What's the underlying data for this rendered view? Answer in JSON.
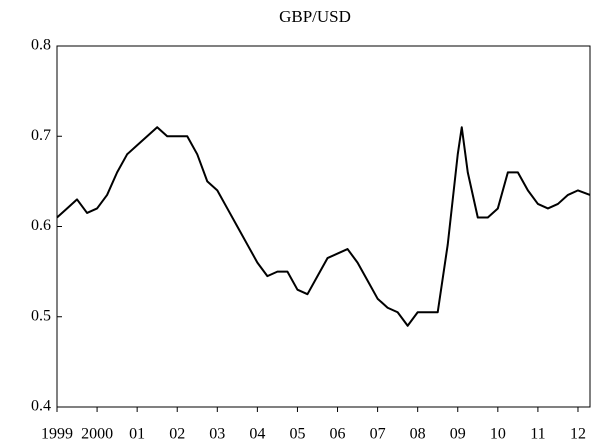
{
  "chart_data": {
    "type": "line",
    "title": "GBP/USD",
    "series": [
      {
        "name": "GBP/USD",
        "color": "#000000",
        "x": [
          1999.0,
          1999.25,
          1999.5,
          1999.75,
          2000.0,
          2000.25,
          2000.5,
          2000.75,
          2001.0,
          2001.25,
          2001.5,
          2001.75,
          2002.0,
          2002.25,
          2002.5,
          2002.75,
          2003.0,
          2003.25,
          2003.5,
          2003.75,
          2004.0,
          2004.25,
          2004.5,
          2004.75,
          2005.0,
          2005.25,
          2005.5,
          2005.75,
          2006.0,
          2006.25,
          2006.5,
          2006.75,
          2007.0,
          2007.25,
          2007.5,
          2007.75,
          2008.0,
          2008.25,
          2008.5,
          2008.75,
          2009.0,
          2009.1,
          2009.25,
          2009.5,
          2009.75,
          2010.0,
          2010.25,
          2010.5,
          2010.75,
          2011.0,
          2011.25,
          2011.5,
          2011.75,
          2012.0,
          2012.3
        ],
        "values": [
          0.61,
          0.62,
          0.63,
          0.615,
          0.62,
          0.635,
          0.66,
          0.68,
          0.69,
          0.7,
          0.71,
          0.7,
          0.7,
          0.7,
          0.68,
          0.65,
          0.64,
          0.62,
          0.6,
          0.58,
          0.56,
          0.545,
          0.55,
          0.55,
          0.53,
          0.525,
          0.545,
          0.565,
          0.57,
          0.575,
          0.56,
          0.54,
          0.52,
          0.51,
          0.505,
          0.49,
          0.505,
          0.505,
          0.505,
          0.58,
          0.68,
          0.71,
          0.66,
          0.61,
          0.61,
          0.62,
          0.66,
          0.66,
          0.64,
          0.625,
          0.62,
          0.625,
          0.635,
          0.64,
          0.635
        ]
      }
    ],
    "xlim": [
      1999,
      2012.3
    ],
    "xticks": [
      1999,
      2000,
      {
        "value": 2001,
        "label": "01"
      },
      {
        "value": 2002,
        "label": "02"
      },
      {
        "value": 2003,
        "label": "03"
      },
      {
        "value": 2004,
        "label": "04"
      },
      {
        "value": 2005,
        "label": "05"
      },
      {
        "value": 2006,
        "label": "06"
      },
      {
        "value": 2007,
        "label": "07"
      },
      {
        "value": 2008,
        "label": "08"
      },
      {
        "value": 2009,
        "label": "09"
      },
      {
        "value": 2010,
        "label": "10"
      },
      {
        "value": 2011,
        "label": "11"
      },
      {
        "value": 2012,
        "label": "12"
      }
    ],
    "ylim": [
      0.4,
      0.8
    ],
    "yticks": [
      0.4,
      0.5,
      0.6,
      0.7,
      0.8
    ],
    "grid": false
  }
}
